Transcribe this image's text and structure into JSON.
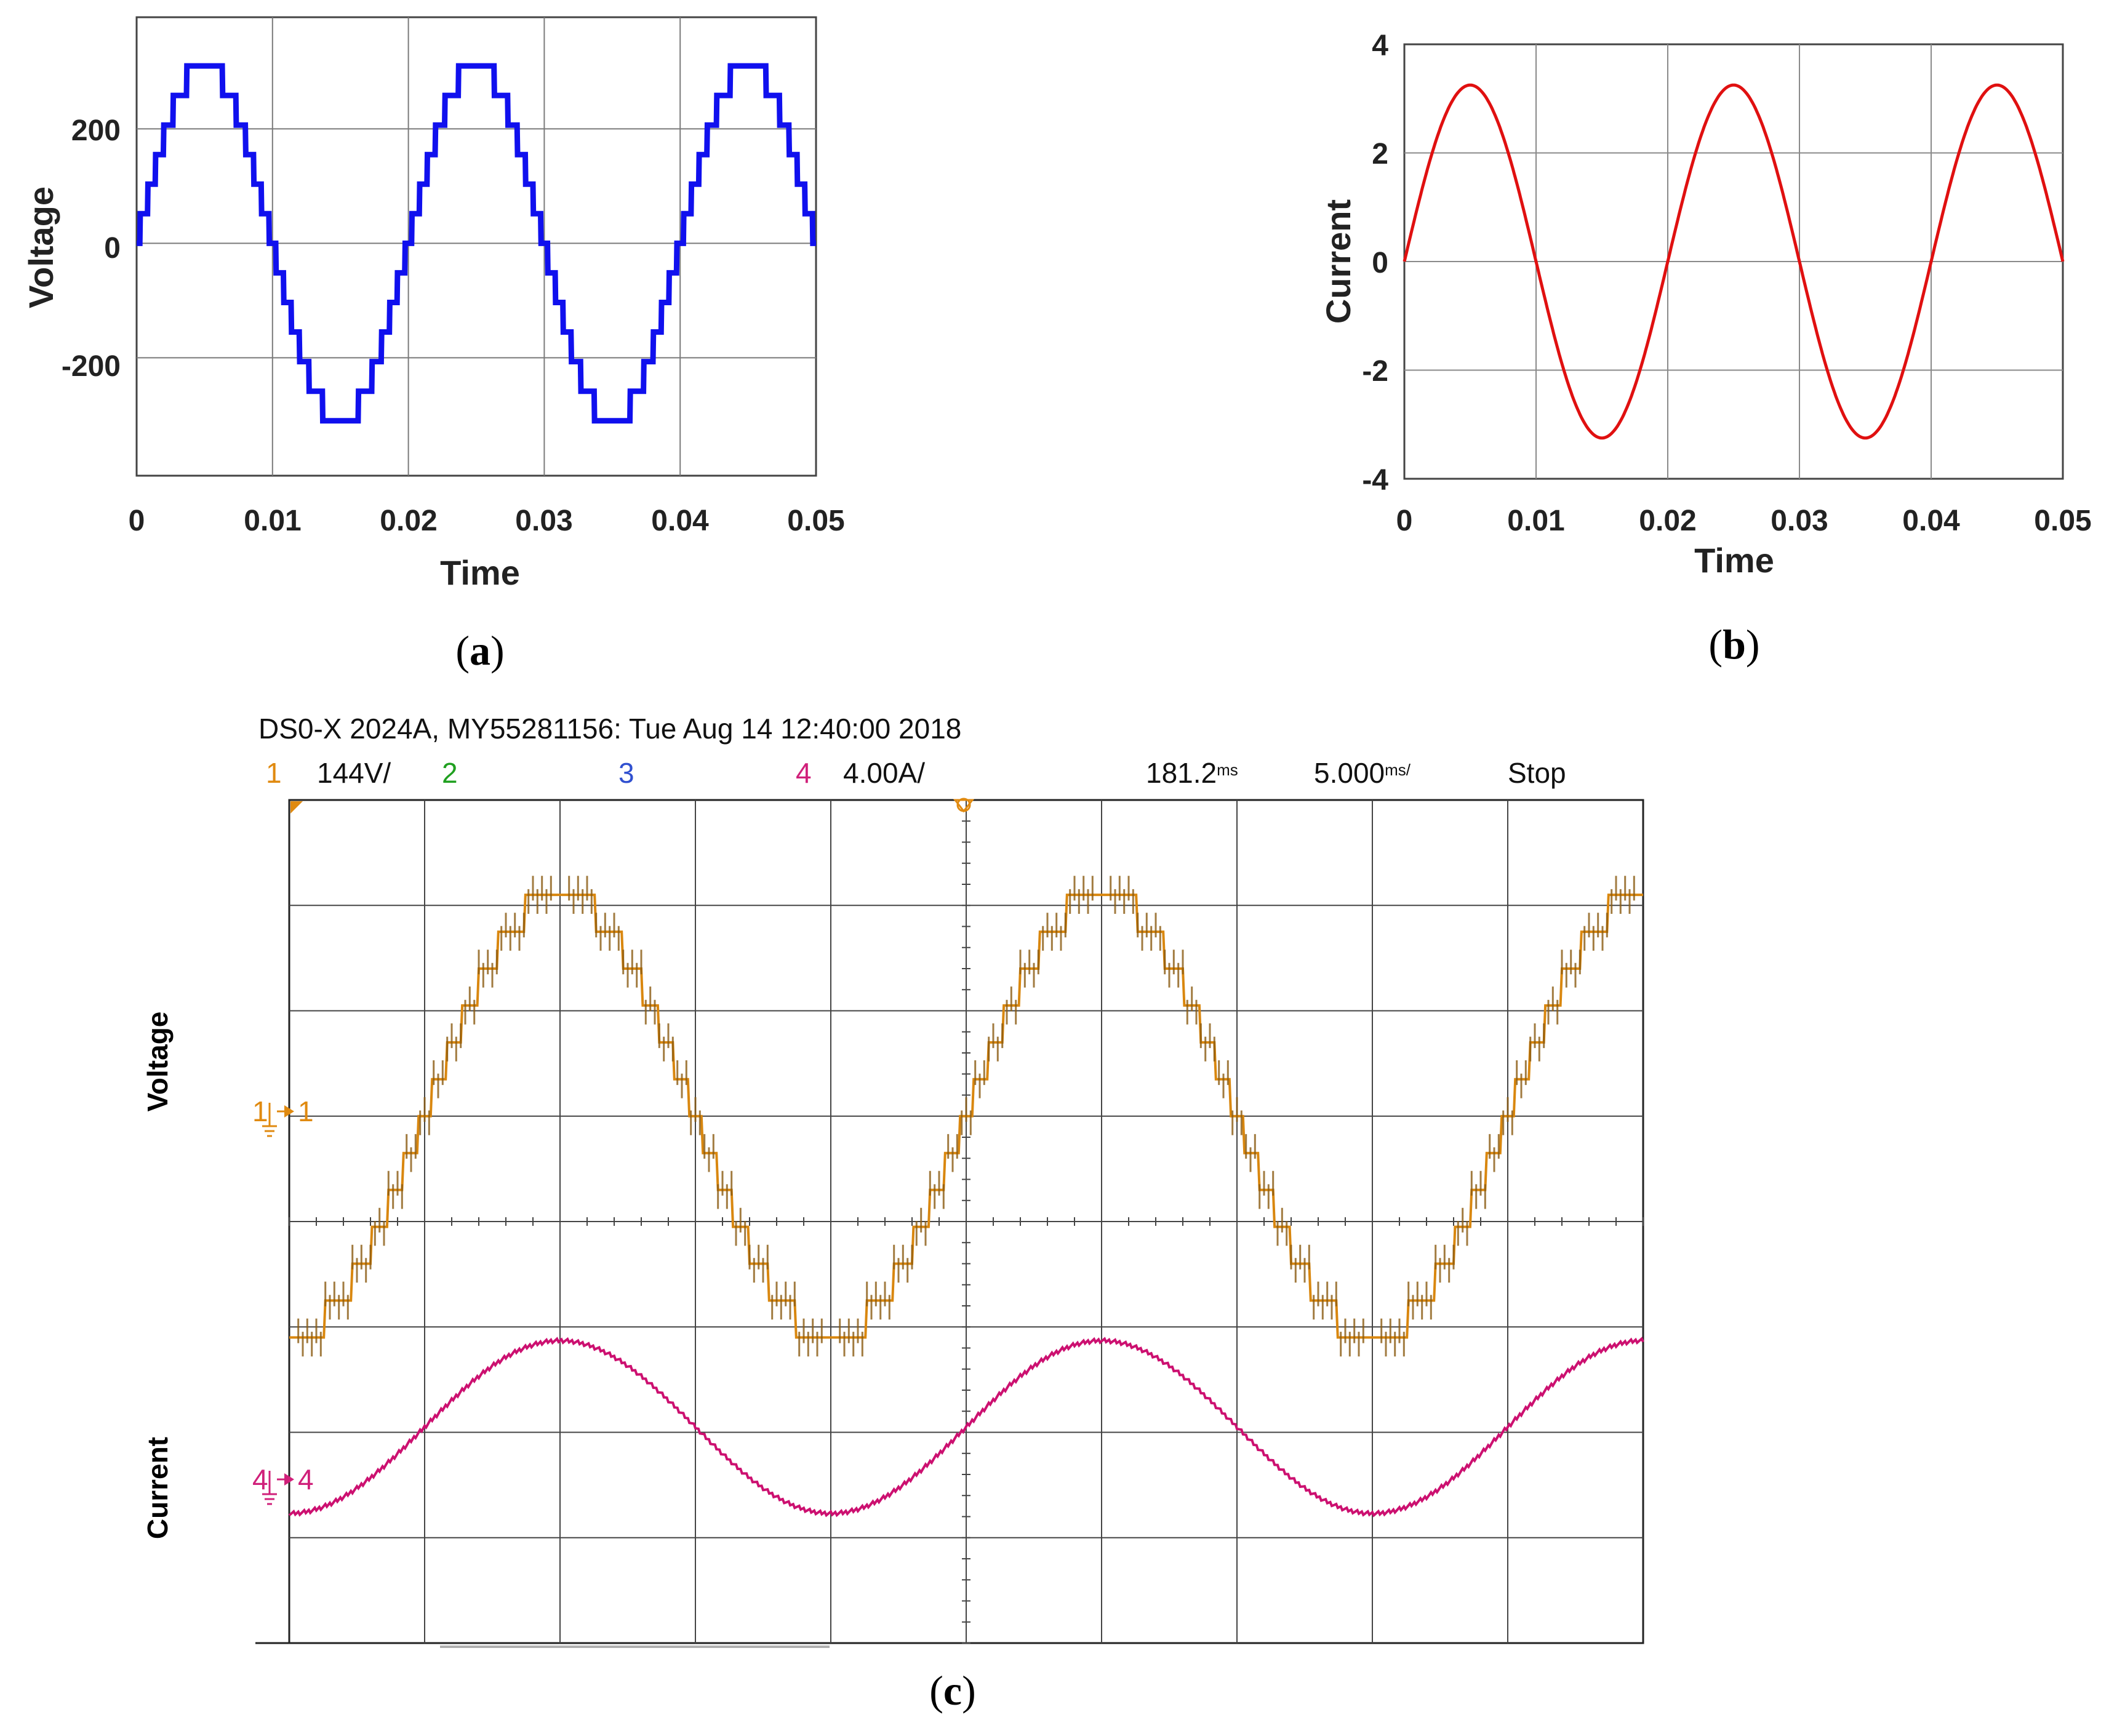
{
  "captions": {
    "a": "a",
    "b": "b",
    "c": "c"
  },
  "chart_data": [
    {
      "panel": "a",
      "type": "line",
      "xlabel": "Time",
      "ylabel": "Voltage",
      "xlim": [
        0,
        0.05
      ],
      "ylim": [
        -390,
        390
      ],
      "xticks": [
        "0",
        "0.01",
        "0.02",
        "0.03",
        "0.04",
        "0.05"
      ],
      "yticks": [
        "200",
        "0",
        "-200"
      ],
      "ytick_values": [
        200,
        0,
        -200
      ],
      "grid": true,
      "series": [
        {
          "color": "#1010ee",
          "waveform": "multilevel staircase sine",
          "amplitude": 310,
          "frequency_hz": 50,
          "levels": 13,
          "x_start": 0,
          "x_end": 0.05
        }
      ]
    },
    {
      "panel": "b",
      "type": "line",
      "xlabel": "Time",
      "ylabel": "Current",
      "xlim": [
        0,
        0.05
      ],
      "ylim": [
        -4,
        4
      ],
      "xticks": [
        "0",
        "0.01",
        "0.02",
        "0.03",
        "0.04",
        "0.05"
      ],
      "yticks": [
        "4",
        "2",
        "0",
        "-2",
        "-4"
      ],
      "ytick_values": [
        4,
        2,
        0,
        -2,
        -4
      ],
      "grid": true,
      "series": [
        {
          "color": "#e01010",
          "waveform": "sine",
          "amplitude": 3.25,
          "frequency_hz": 50,
          "x_start": 0,
          "x_end": 0.05
        }
      ]
    },
    {
      "panel": "c",
      "type": "line",
      "header": "DS0-X 2024A, MY55281156: Tue Aug 14 12:40:00 2018",
      "channels": [
        {
          "num": "1",
          "scale": "144V/",
          "color": "#e08a10"
        },
        {
          "num": "2",
          "scale": "",
          "color": "#20a020"
        },
        {
          "num": "3",
          "scale": "",
          "color": "#3050d0"
        },
        {
          "num": "4",
          "scale": "4.00A/",
          "color": "#d0207a"
        }
      ],
      "delay": "181.2",
      "delay_unit": "ms",
      "timebase": "5.000",
      "timebase_unit": "ms/",
      "run_state": "Stop",
      "ch1_marker": "1",
      "ch4_marker": "4",
      "side_labels": {
        "voltage": "Voltage",
        "current": "Current"
      },
      "divisions": {
        "x": 10,
        "y": 8
      },
      "series": [
        {
          "name": "Voltage",
          "color": "#d9870f",
          "waveform": "multilevel staircase sine",
          "amplitude_div": 2.1,
          "offset_div": 1,
          "period_div": 4,
          "start_phase": "trough"
        },
        {
          "name": "Current",
          "color": "#cc1070",
          "waveform": "sine",
          "amplitude_div": 0.82,
          "offset_div": -1.95,
          "period_div": 4,
          "start_phase": "trough"
        }
      ]
    }
  ]
}
